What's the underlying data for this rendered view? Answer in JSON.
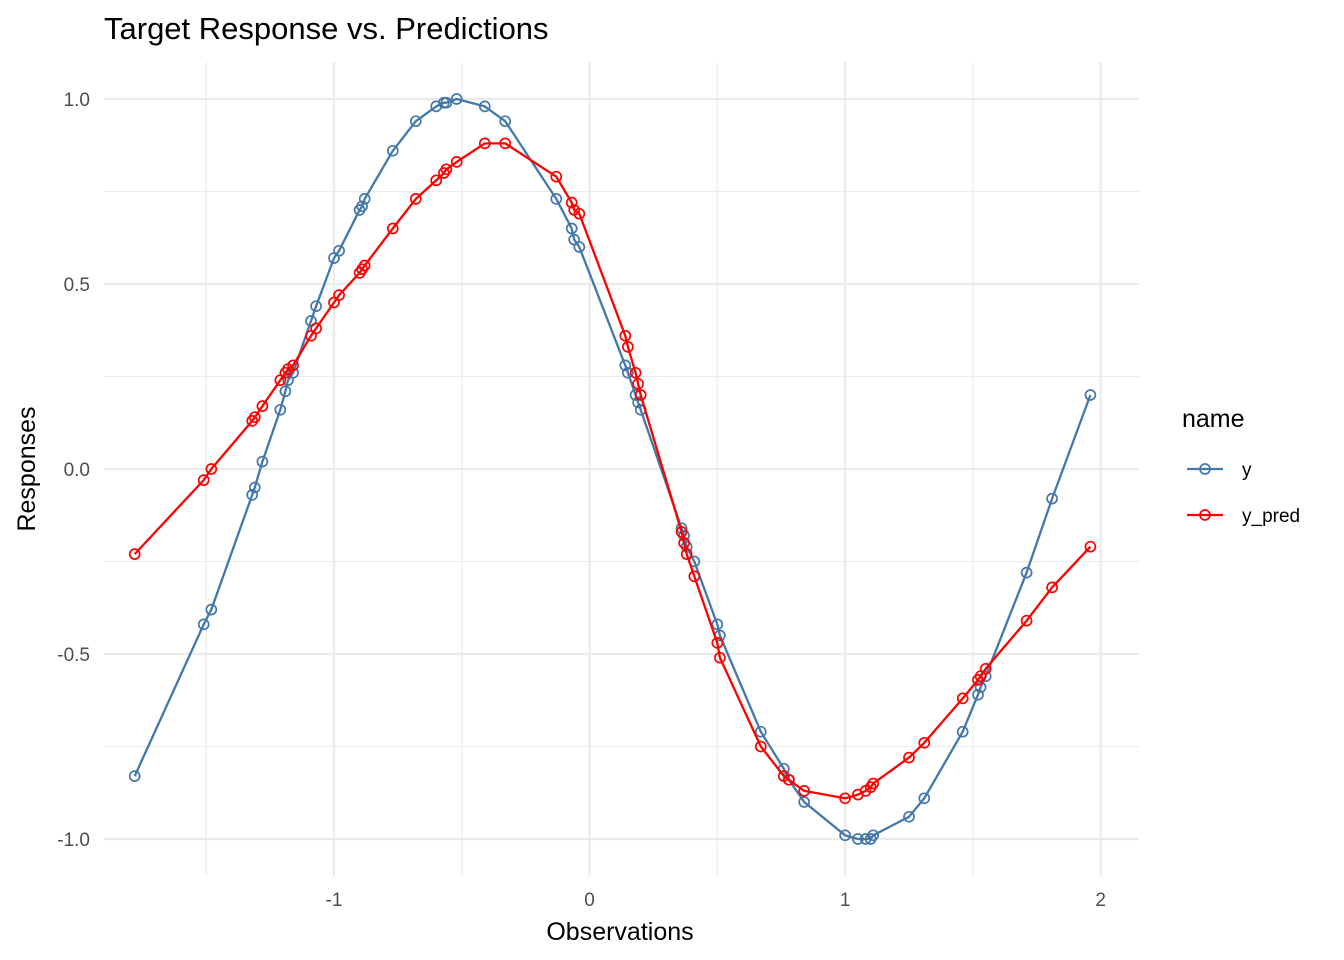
{
  "chart_data": {
    "type": "line",
    "title": "Target Response vs. Predictions",
    "xlabel": "Observations",
    "ylabel": "Responses",
    "xlim": [
      -1.9,
      2.15
    ],
    "ylim": [
      -1.1,
      1.1
    ],
    "x_ticks": [
      -1,
      0,
      1,
      2
    ],
    "x_tick_labels": [
      "-1",
      "0",
      "1",
      "2"
    ],
    "y_ticks": [
      -1.0,
      -0.5,
      0.0,
      0.5,
      1.0
    ],
    "y_tick_labels": [
      "-1.0",
      "-0.5",
      "0.0",
      "0.5",
      "1.0"
    ],
    "grid": true,
    "legend": {
      "title": "name",
      "position": "right"
    },
    "x": [
      -1.78,
      -1.51,
      -1.48,
      -1.32,
      -1.31,
      -1.28,
      -1.21,
      -1.19,
      -1.18,
      -1.16,
      -1.09,
      -1.07,
      -1.0,
      -0.98,
      -0.9,
      -0.89,
      -0.88,
      -0.77,
      -0.68,
      -0.6,
      -0.57,
      -0.56,
      -0.52,
      -0.41,
      -0.33,
      -0.13,
      -0.07,
      -0.06,
      -0.04,
      0.14,
      0.15,
      0.18,
      0.19,
      0.2,
      0.36,
      0.37,
      0.38,
      0.41,
      0.5,
      0.51,
      0.67,
      0.76,
      0.78,
      0.84,
      1.0,
      1.05,
      1.08,
      1.1,
      1.11,
      1.25,
      1.31,
      1.46,
      1.52,
      1.53,
      1.55,
      1.71,
      1.81,
      1.96
    ],
    "series": [
      {
        "name": "y",
        "color": "#4477aa",
        "values": [
          -0.83,
          -0.42,
          -0.38,
          -0.07,
          -0.05,
          0.02,
          0.16,
          0.21,
          0.24,
          0.26,
          0.4,
          0.44,
          0.57,
          0.59,
          0.7,
          0.71,
          0.73,
          0.86,
          0.94,
          0.98,
          0.99,
          0.99,
          1.0,
          0.98,
          0.94,
          0.73,
          0.65,
          0.62,
          0.6,
          0.28,
          0.26,
          0.2,
          0.18,
          0.16,
          -0.16,
          -0.18,
          -0.21,
          -0.25,
          -0.42,
          -0.45,
          -0.71,
          -0.81,
          -0.84,
          -0.9,
          -0.99,
          -1.0,
          -1.0,
          -1.0,
          -0.99,
          -0.94,
          -0.89,
          -0.71,
          -0.61,
          -0.59,
          -0.56,
          -0.28,
          -0.08,
          0.2
        ]
      },
      {
        "name": "y_pred",
        "color": "#ff0000",
        "values": [
          -0.23,
          -0.03,
          0.0,
          0.13,
          0.14,
          0.17,
          0.24,
          0.26,
          0.27,
          0.28,
          0.36,
          0.38,
          0.45,
          0.47,
          0.53,
          0.54,
          0.55,
          0.65,
          0.73,
          0.78,
          0.8,
          0.81,
          0.83,
          0.88,
          0.88,
          0.79,
          0.72,
          0.7,
          0.69,
          0.36,
          0.33,
          0.26,
          0.23,
          0.2,
          -0.17,
          -0.2,
          -0.23,
          -0.29,
          -0.47,
          -0.51,
          -0.75,
          -0.83,
          -0.84,
          -0.87,
          -0.89,
          -0.88,
          -0.87,
          -0.86,
          -0.85,
          -0.78,
          -0.74,
          -0.62,
          -0.57,
          -0.56,
          -0.54,
          -0.41,
          -0.32,
          -0.21
        ]
      }
    ]
  }
}
